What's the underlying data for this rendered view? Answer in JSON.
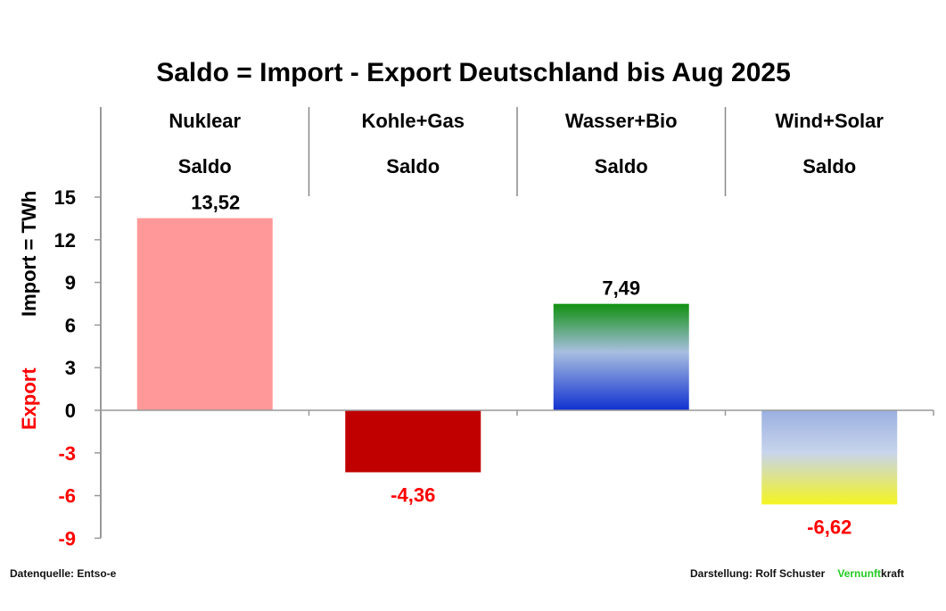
{
  "chart_data": {
    "type": "bar",
    "title": "Saldo = Import - Export Deutschland bis Aug 2025",
    "ylabel_import": "Import =  TWh",
    "ylabel_export": "Export",
    "ylim": [
      -9,
      15
    ],
    "yticks": [
      15,
      12,
      9,
      6,
      3,
      0,
      -3,
      -6,
      -9
    ],
    "categories": [
      "Nuklear",
      "Kohle+Gas",
      "Wasser+Bio",
      "Wind+Solar"
    ],
    "subcategory": "Saldo",
    "values": [
      13.52,
      -4.36,
      7.49,
      -6.62
    ],
    "value_labels": [
      "13,52",
      "-4,36",
      "7,49",
      "-6,62"
    ],
    "colors": {
      "positive_text": "#000000",
      "negative_text": "#ff0000",
      "nuklear": "#ff9999",
      "kohle_gas": "#c00000",
      "wasser_bio": [
        "#109010",
        "#a8bfe0",
        "#1030d0"
      ],
      "wind_solar": [
        "#9ab0e0",
        "#c8d4ec",
        "#f4f420"
      ]
    }
  },
  "footer": {
    "source": "Datenquelle: Entso-e",
    "credit": "Darstellung:  Rolf Schuster",
    "brand_green": "Vernunft",
    "brand_black": "kraft",
    "brand_color": "#22cc22"
  }
}
